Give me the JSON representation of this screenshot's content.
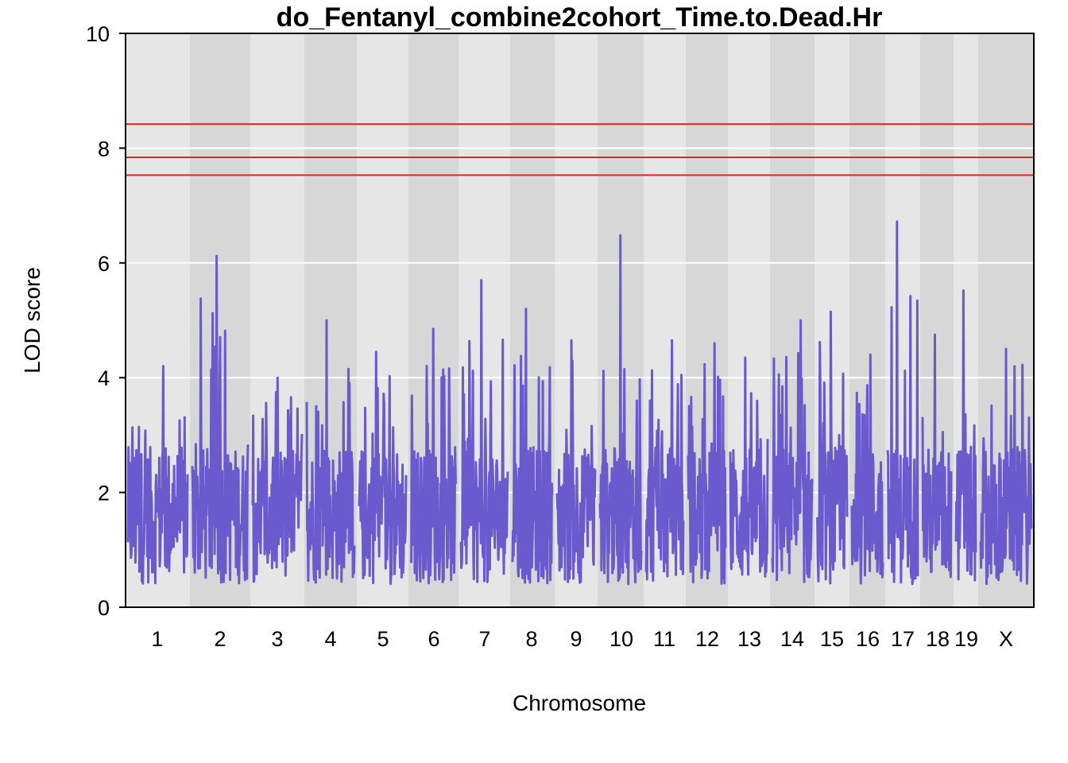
{
  "chart_data": {
    "type": "line",
    "title": "do_Fentanyl_combine2cohort_Time.to.Dead.Hr",
    "xlabel": "Chromosome",
    "ylabel": "LOD score",
    "ylim": [
      0,
      10
    ],
    "yticks": [
      "0",
      "2",
      "4",
      "6",
      "8",
      "10"
    ],
    "grid": true,
    "legend": "none",
    "colors": {
      "line": "#6a5acd",
      "threshold": "#e8231a",
      "band_light": "#e6e6e6",
      "band_dark": "#d7d7d7",
      "grid": "#ffffff"
    },
    "thresholds": [
      8.42,
      7.84,
      7.53
    ],
    "chromosomes": [
      {
        "label": "1",
        "peak": 4.2
      },
      {
        "label": "2",
        "peak": 6.12
      },
      {
        "label": "3",
        "peak": 4.0
      },
      {
        "label": "4",
        "peak": 5.0
      },
      {
        "label": "5",
        "peak": 4.45
      },
      {
        "label": "6",
        "peak": 4.85
      },
      {
        "label": "7",
        "peak": 5.7
      },
      {
        "label": "8",
        "peak": 5.2
      },
      {
        "label": "9",
        "peak": 4.65
      },
      {
        "label": "10",
        "peak": 6.48
      },
      {
        "label": "11",
        "peak": 4.65
      },
      {
        "label": "12",
        "peak": 4.6
      },
      {
        "label": "13",
        "peak": 4.35
      },
      {
        "label": "14",
        "peak": 5.0
      },
      {
        "label": "15",
        "peak": 5.15
      },
      {
        "label": "16",
        "peak": 4.4
      },
      {
        "label": "17",
        "peak": 6.72
      },
      {
        "label": "18",
        "peak": 4.75
      },
      {
        "label": "19",
        "peak": 5.52
      },
      {
        "label": "X",
        "peak": 4.5
      }
    ]
  }
}
